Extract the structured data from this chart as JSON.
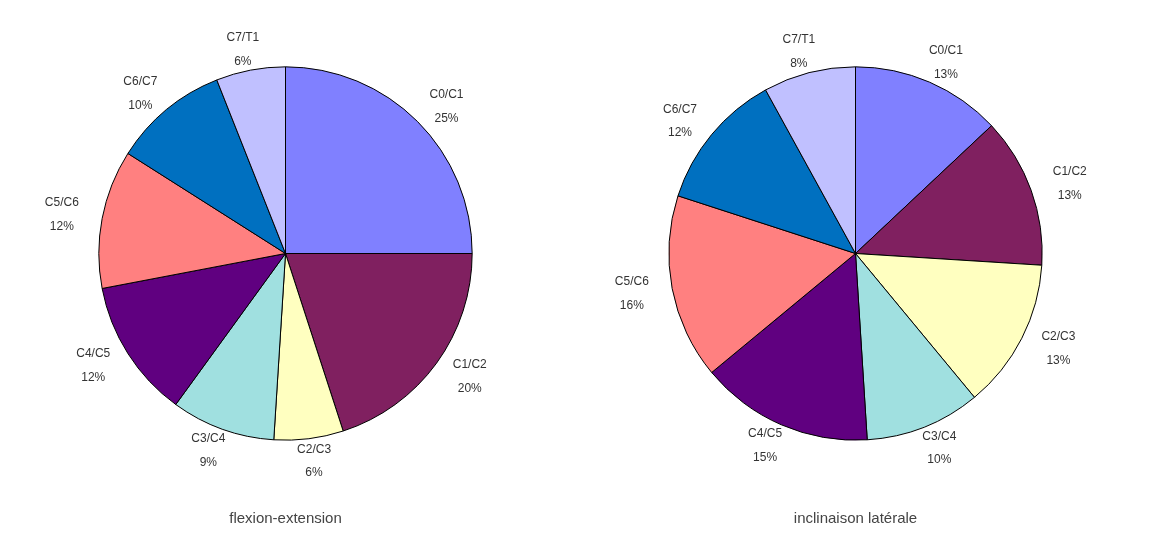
{
  "chart_data": [
    {
      "type": "pie",
      "title": "flexion-extension",
      "categories": [
        "C0/C1",
        "C1/C2",
        "C2/C3",
        "C3/C4",
        "C4/C5",
        "C5/C6",
        "C6/C7",
        "C7/T1"
      ],
      "values": [
        25,
        20,
        6,
        9,
        12,
        12,
        10,
        6
      ],
      "value_labels": [
        "25%",
        "20%",
        "6%",
        "9%",
        "12%",
        "12%",
        "10%",
        "6%"
      ],
      "colors": [
        "#8080ff",
        "#802060",
        "#ffffc0",
        "#a0e0e0",
        "#600080",
        "#ff8080",
        "#0070c0",
        "#c0c0ff"
      ],
      "legend": false
    },
    {
      "type": "pie",
      "title": "inclinaison latérale",
      "categories": [
        "C0/C1",
        "C1/C2",
        "C2/C3",
        "C3/C4",
        "C4/C5",
        "C5/C6",
        "C6/C7",
        "C7/T1"
      ],
      "values": [
        13,
        13,
        13,
        10,
        15,
        16,
        12,
        8
      ],
      "value_labels": [
        "13%",
        "13%",
        "13%",
        "10%",
        "15%",
        "16%",
        "12%",
        "8%"
      ],
      "colors": [
        "#8080ff",
        "#802060",
        "#ffffc0",
        "#a0e0e0",
        "#600080",
        "#ff8080",
        "#0070c0",
        "#c0c0ff"
      ],
      "legend": false
    }
  ]
}
